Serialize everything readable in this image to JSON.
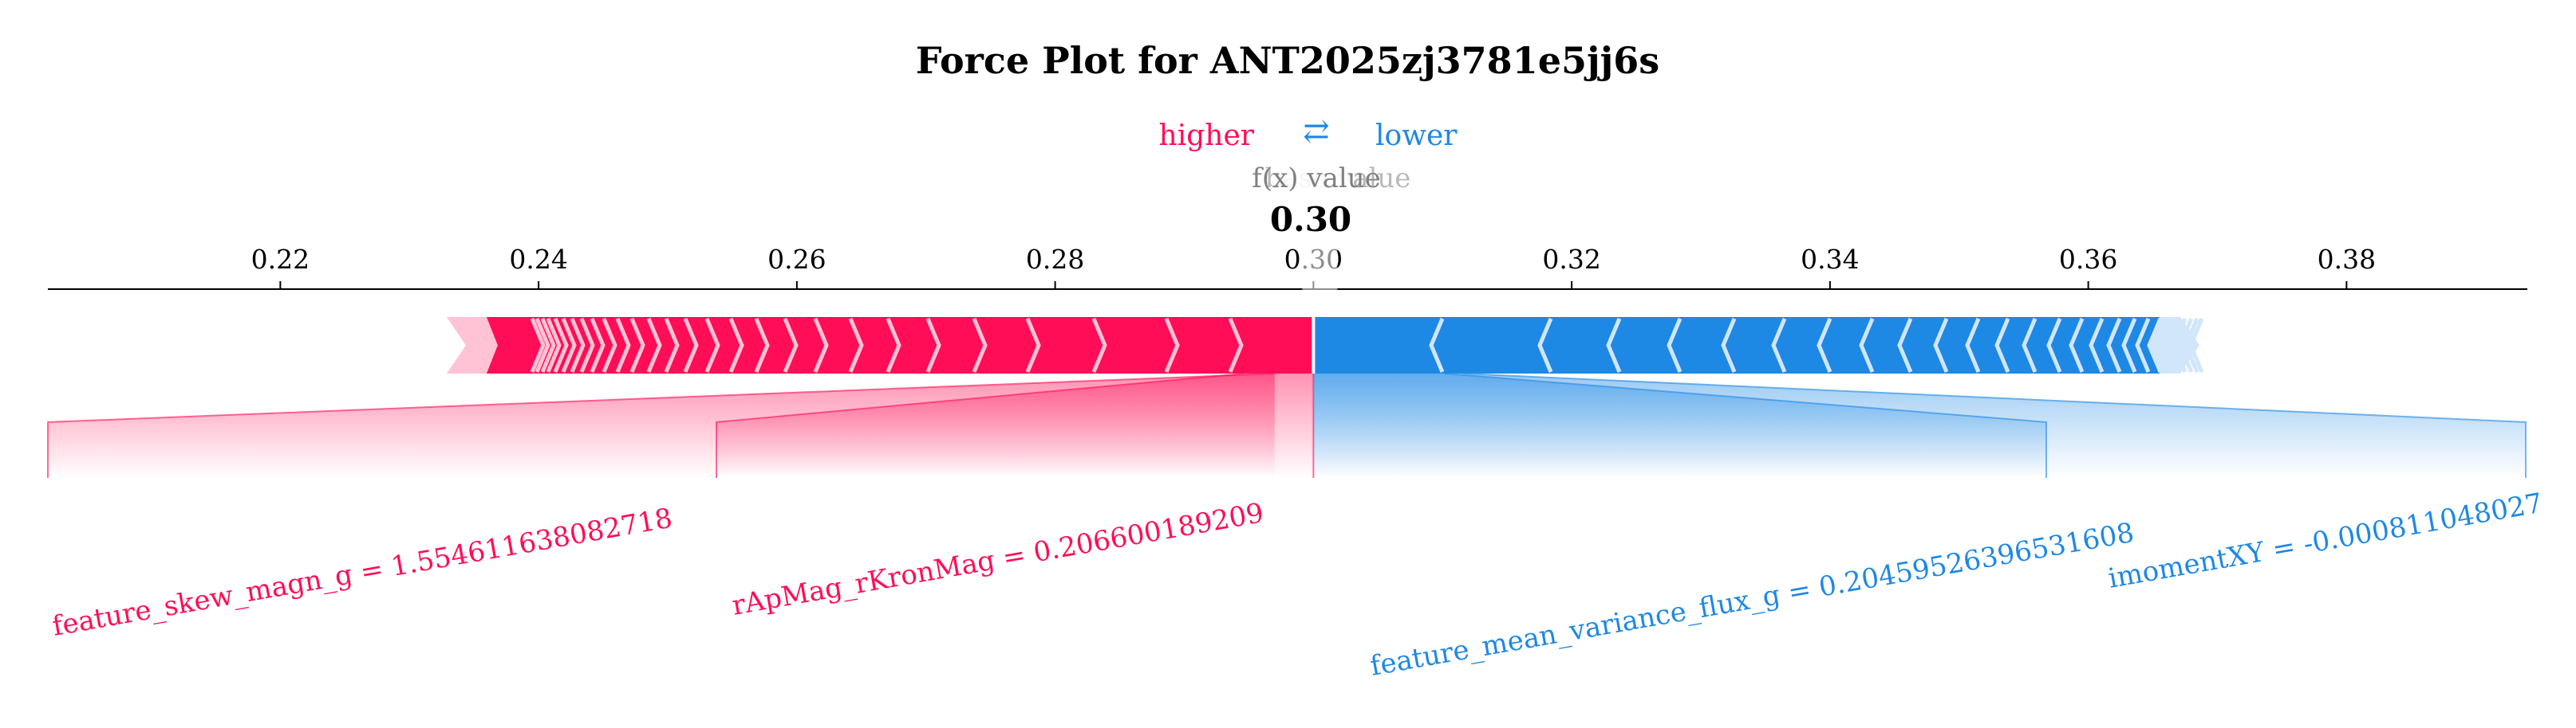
{
  "chart_data": {
    "type": "force",
    "title": "Force Plot for ANT2025zj3781e5jj6s",
    "legend": {
      "higher": "higher",
      "arrow": "⇄",
      "lower": "lower"
    },
    "fx_label": "f(x) value",
    "fx_label_visible": "f(x) ",
    "fx_label_tail": "value",
    "base_value_label": "base value",
    "output_value": 0.3,
    "output_value_text": "0.30",
    "xlim": [
      0.202,
      0.394
    ],
    "x_ticks": [
      {
        "value": 0.22,
        "label": "0.22"
      },
      {
        "value": 0.24,
        "label": "0.24"
      },
      {
        "value": 0.26,
        "label": "0.26"
      },
      {
        "value": 0.28,
        "label": "0.28"
      },
      {
        "value": 0.3,
        "label": "0.30"
      },
      {
        "value": 0.32,
        "label": "0.32"
      },
      {
        "value": 0.34,
        "label": "0.34"
      },
      {
        "value": 0.36,
        "label": "0.36"
      },
      {
        "value": 0.38,
        "label": "0.38"
      }
    ],
    "positive_span": [
      0.2335,
      0.3
    ],
    "negative_span": [
      0.3,
      0.368
    ],
    "positive_labeled": [
      {
        "label": "feature_skew_magn_g = 1.554611638082718",
        "from": 0.297,
        "to": 0.3
      },
      {
        "label": "rApMag_rKronMag = 0.206600189209",
        "from": 0.2946,
        "to": 0.297
      }
    ],
    "negative_labeled": [
      {
        "label": "feature_mean_variance_flux_g = 0.20459526396531608",
        "from": 0.3,
        "to": 0.3102
      },
      {
        "label": "imomentXY = -0.000811048027",
        "from": 0.3102,
        "to": 0.3116
      }
    ],
    "colors": {
      "positive": "#ff0d57",
      "positive_light": "#ffc3d5",
      "negative": "#1e88e5",
      "negative_light": "#d1e6fa",
      "text": "#000000",
      "muted": "#808080"
    }
  }
}
